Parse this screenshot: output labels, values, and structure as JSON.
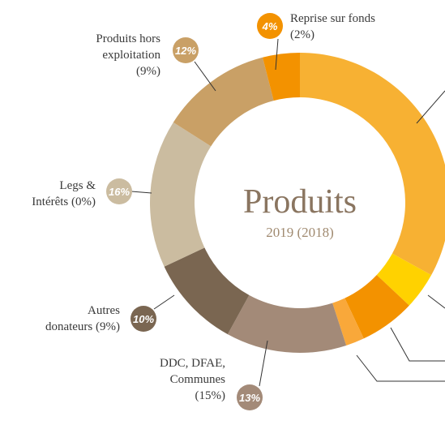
{
  "chart_data": {
    "type": "donut",
    "title": "Produits",
    "subtitle": "2019 (2018)",
    "values": [
      33,
      4,
      6,
      2,
      13,
      10,
      16,
      12,
      4
    ],
    "value_labels": [
      null,
      null,
      null,
      null,
      "13%",
      "10%",
      "16%",
      "12%",
      "4%"
    ],
    "labels": [
      null,
      null,
      null,
      null,
      [
        "DDC, DFAE,",
        "Communes",
        "(15%)"
      ],
      [
        "Autres",
        "donateurs (9%)"
      ],
      [
        "Legs &",
        "Intérêts (0%)"
      ],
      [
        "Produits hors",
        "exploitation",
        "(9%)"
      ],
      [
        "Reprise sur fonds",
        "(2%)"
      ]
    ],
    "colors": [
      "#F7B133",
      "#FFD200",
      "#F39200",
      "#F9A83A",
      "#A38A78",
      "#7A6651",
      "#CBBCA0",
      "#C9A066",
      "#F39200"
    ]
  }
}
